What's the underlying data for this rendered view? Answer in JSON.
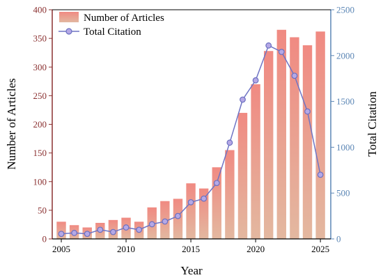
{
  "chart_data": {
    "type": "bar",
    "xlabel": "Year",
    "ylabel": "Number of Articles",
    "y2label": "Total Citation",
    "x": [
      2005,
      2006,
      2007,
      2008,
      2009,
      2010,
      2011,
      2012,
      2013,
      2014,
      2015,
      2016,
      2017,
      2018,
      2019,
      2020,
      2021,
      2022,
      2023,
      2024,
      2025
    ],
    "xticks": [
      "2005",
      "2010",
      "2015",
      "2020",
      "2025"
    ],
    "xtick_values": [
      2005,
      2010,
      2015,
      2020,
      2025
    ],
    "xlim": [
      2004.3,
      2025.8
    ],
    "ylim": [
      0,
      400
    ],
    "y2lim": [
      0,
      2500
    ],
    "yticks": [
      "0",
      "50",
      "100",
      "150",
      "200",
      "250",
      "300",
      "350",
      "400"
    ],
    "y2ticks": [
      "0",
      "500",
      "1000",
      "1500",
      "2000",
      "2500"
    ],
    "legend_position": "top-left",
    "series": [
      {
        "name": "Number of Articles",
        "kind": "bar",
        "axis": "left",
        "values": [
          30,
          24,
          20,
          28,
          33,
          37,
          30,
          55,
          66,
          70,
          97,
          88,
          125,
          155,
          220,
          270,
          328,
          365,
          352,
          338,
          362
        ]
      },
      {
        "name": "Total Citation",
        "kind": "line",
        "axis": "right",
        "values": [
          55,
          65,
          55,
          100,
          75,
          125,
          100,
          160,
          190,
          250,
          400,
          440,
          610,
          1050,
          1520,
          1730,
          2110,
          2040,
          1780,
          1390,
          700
        ]
      }
    ],
    "colors": {
      "bar_top": "#f08a82",
      "bar_bottom": "#e3b8a0",
      "line": "#6f74c4",
      "marker_fill": "#b5a8e6",
      "marker_stroke": "#6a6fc0",
      "left_axis": "#8a3030",
      "right_axis": "#5b86b5"
    }
  }
}
